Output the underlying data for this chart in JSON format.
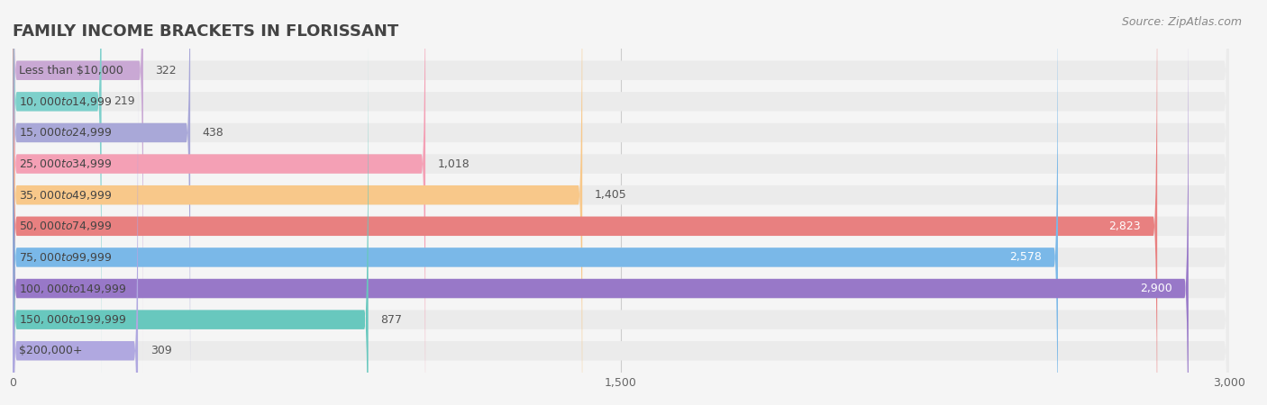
{
  "title": "FAMILY INCOME BRACKETS IN FLORISSANT",
  "source": "Source: ZipAtlas.com",
  "categories": [
    "Less than $10,000",
    "$10,000 to $14,999",
    "$15,000 to $24,999",
    "$25,000 to $34,999",
    "$35,000 to $49,999",
    "$50,000 to $74,999",
    "$75,000 to $99,999",
    "$100,000 to $149,999",
    "$150,000 to $199,999",
    "$200,000+"
  ],
  "values": [
    322,
    219,
    438,
    1018,
    1405,
    2823,
    2578,
    2900,
    877,
    309
  ],
  "bar_colors": [
    "#c9a8d4",
    "#7dd0cb",
    "#a9a8d8",
    "#f4a0b5",
    "#f8c88a",
    "#e88080",
    "#7ab8e8",
    "#9878c8",
    "#68c8be",
    "#b0a8e0"
  ],
  "background_color": "#f5f5f5",
  "bar_bg_color": "#ebebeb",
  "xlim": [
    0,
    3000
  ],
  "xticks": [
    0,
    1500,
    3000
  ],
  "title_fontsize": 13,
  "label_fontsize": 9,
  "value_fontsize": 9,
  "source_fontsize": 9
}
